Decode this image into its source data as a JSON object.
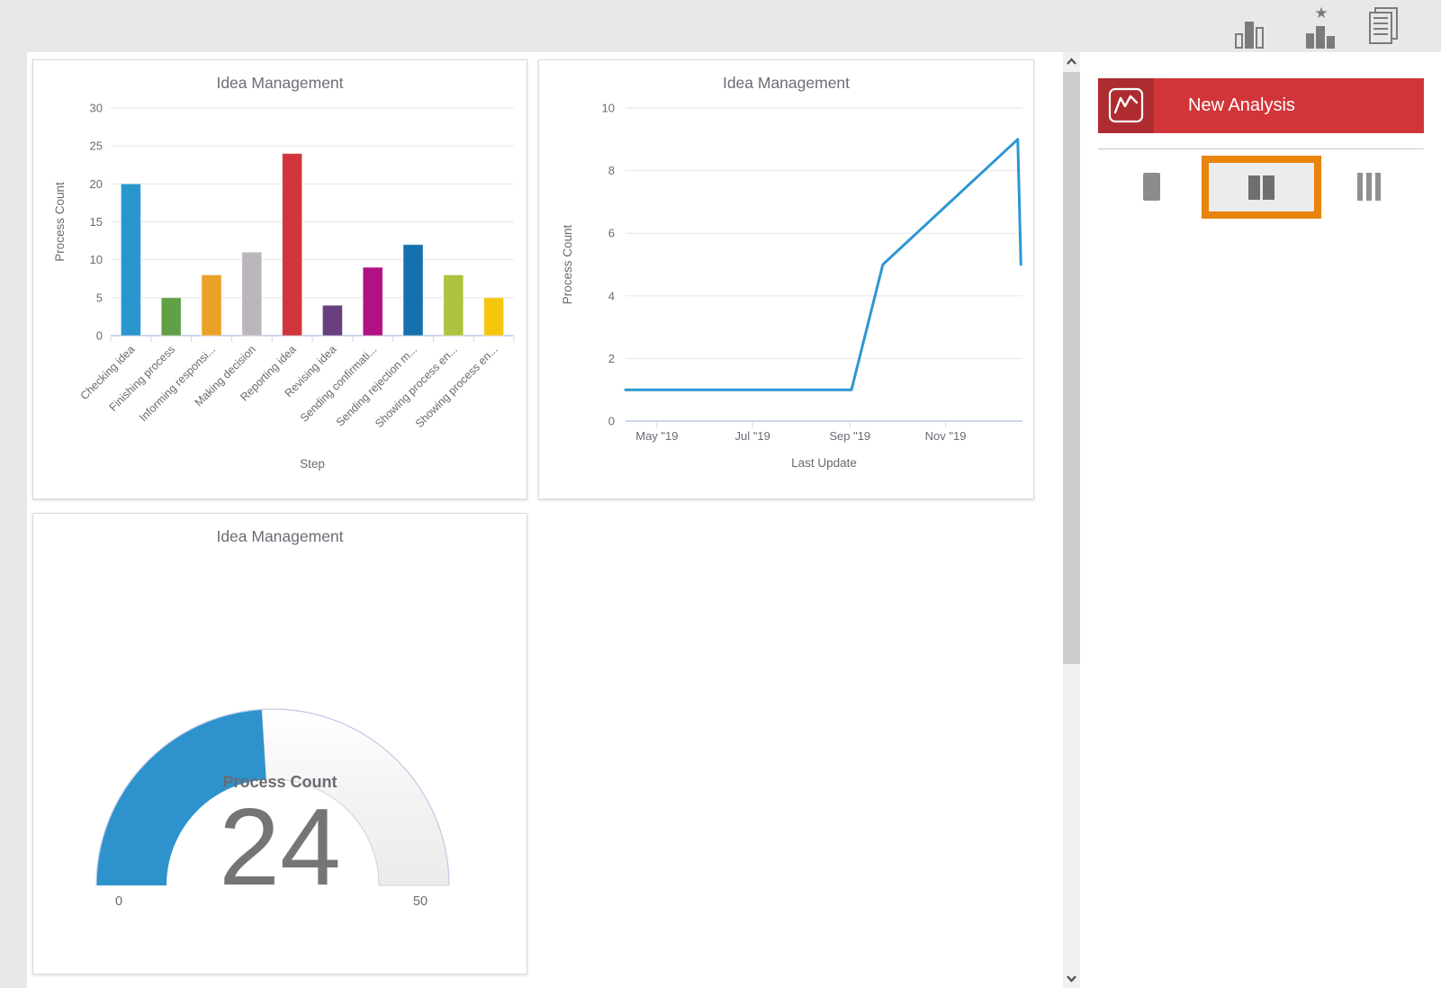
{
  "top_bar": {
    "icons": [
      {
        "name": "column-chart-icon"
      },
      {
        "name": "featured-chart-icon"
      },
      {
        "name": "report-icon"
      }
    ]
  },
  "panel": {
    "new_analysis_label": "New Analysis",
    "button_color": "#d23539",
    "button_dark_color": "#ae2b2f",
    "selected_border_color": "#e8830c",
    "layout_options": [
      "one-column",
      "two-columns",
      "three-columns"
    ],
    "selected_layout": "two-columns"
  },
  "chart_data": [
    {
      "type": "bar",
      "title": "Idea Management",
      "xlabel": "Step",
      "ylabel": "Process Count",
      "categories": [
        "Checking idea",
        "Finishing process",
        "Informing responsi...",
        "Making decision",
        "Reporting idea",
        "Revising idea",
        "Sending confirmati...",
        "Sending rejection m...",
        "Showing process en...",
        "Showing process en..."
      ],
      "values": [
        20,
        5,
        8,
        11,
        24,
        4,
        9,
        12,
        8,
        5
      ],
      "colors": [
        "#2997CE",
        "#61A046",
        "#E9A227",
        "#BBB5BC",
        "#D0353C",
        "#68407F",
        "#B01284",
        "#1471AE",
        "#AEC23F",
        "#F5C60D"
      ],
      "ylim": [
        0,
        30
      ],
      "yticks": [
        0,
        5,
        10,
        15,
        20,
        25,
        30
      ],
      "grid": true
    },
    {
      "type": "line",
      "title": "Idea Management",
      "xlabel": "Last Update",
      "ylabel": "Process Count",
      "ylim": [
        0,
        10
      ],
      "yticks": [
        0,
        2,
        4,
        6,
        8,
        10
      ],
      "x_domain": [
        "2019-04-11",
        "2019-12-20"
      ],
      "xticks": [
        {
          "date": "2019-05-01",
          "label": "May \"19"
        },
        {
          "date": "2019-07-01",
          "label": "Jul \"19"
        },
        {
          "date": "2019-09-01",
          "label": "Sep \"19"
        },
        {
          "date": "2019-11-01",
          "label": "Nov \"19"
        }
      ],
      "points": [
        {
          "date": "2019-04-11",
          "value": 1
        },
        {
          "date": "2019-09-02",
          "value": 1
        },
        {
          "date": "2019-09-22",
          "value": 5
        },
        {
          "date": "2019-12-17",
          "value": 9
        },
        {
          "date": "2019-12-19",
          "value": 5
        }
      ],
      "line_color": "#2E97D1",
      "grid": true
    },
    {
      "type": "gauge",
      "title": "Idea Management",
      "label": "Process Count",
      "value": 24,
      "min": 0,
      "max": 50,
      "min_label": "0",
      "max_label": "50",
      "color": "#2E93CC"
    }
  ]
}
